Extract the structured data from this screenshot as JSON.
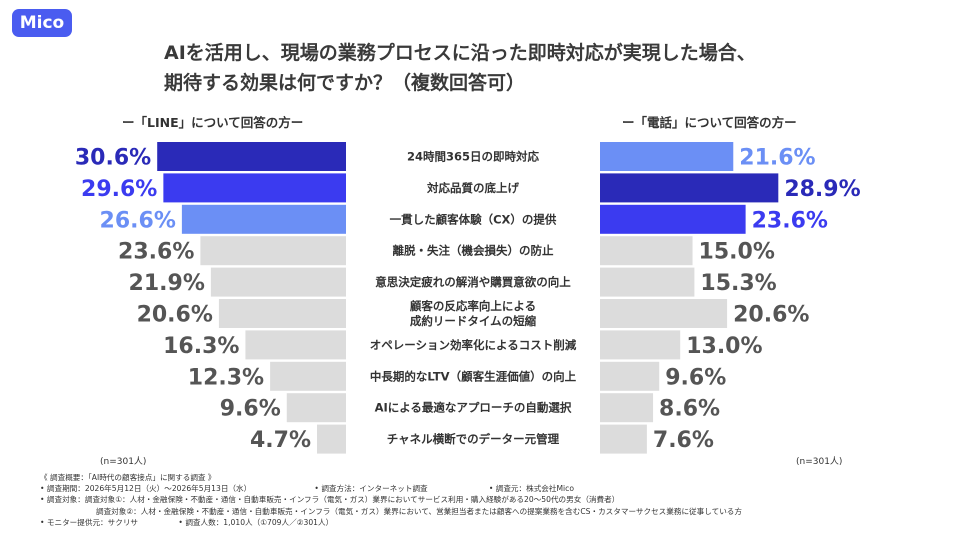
{
  "brand": "Mico",
  "title_line1": "AIを活用し、現場の業務プロセスに沿った即時対応が実現した場合、",
  "title_line2": "期待する効果は何ですか？（複数回答可）",
  "left_header": "ー「LINE」について回答の方ー",
  "right_header": "ー「電話」について回答の方ー",
  "left_n": "(n=301人)",
  "right_n": "(n=301人)",
  "colors": {
    "rank1": "#2a2ab8",
    "rank2": "#3b3bf0",
    "rank3": "#6b8ff5",
    "other": "#dcdcdc",
    "brand": "#4a5cf0"
  },
  "chart_data": {
    "type": "bar",
    "categories": [
      "24時間365日の即時対応",
      "対応品質の底上げ",
      "一貫した顧客体験（CX）の提供",
      "離脱・失注（機会損失）の防止",
      "意思決定疲れの解消や購買意欲の向上",
      "顧客の反応率向上による\n成約リードタイムの短縮",
      "オペレーション効率化によるコスト削減",
      "中長期的なLTV（顧客生涯価値）の向上",
      "AIによる最適なアプローチの自動選択",
      "チャネル横断でのデーター元管理"
    ],
    "series": [
      {
        "name": "ー「LINE」について回答の方ー",
        "values": [
          30.6,
          29.6,
          26.6,
          23.6,
          21.9,
          20.6,
          16.3,
          12.3,
          9.6,
          4.7
        ],
        "labels": [
          "30.6%",
          "29.6%",
          "26.6%",
          "23.6%",
          "21.9%",
          "20.6%",
          "16.3%",
          "12.3%",
          "9.6%",
          "4.7%"
        ]
      },
      {
        "name": "ー「電話」について回答の方ー",
        "values": [
          21.6,
          28.9,
          23.6,
          15.0,
          15.3,
          20.6,
          13.0,
          9.6,
          8.6,
          7.6
        ],
        "labels": [
          "21.6%",
          "28.9%",
          "23.6%",
          "15.0%",
          "15.3%",
          "20.6%",
          "13.0%",
          "9.6%",
          "8.6%",
          "7.6%"
        ]
      }
    ]
  },
  "footer": {
    "line1": "《 調査概要：「AI時代の顧客接点」に関する調査 》",
    "period": "• 調査期間：2026年5月12日（火）〜2026年5月13日（水）",
    "method": "• 調査方法：インターネット調査",
    "source": "• 調査元：株式会社Mico",
    "target1": "• 調査対象：調査対象①：人材・金融保険・不動産・通信・自動車販売・インフラ（電気・ガス）業界においてサービス利用・購入経験がある20〜50代の男女（消費者）",
    "target2": "調査対象②：人材・金融保険・不動産・通信・自動車販売・インフラ（電気・ガス）業界において、営業担当者または顧客への提案業務を含むCS・カスタマーサクセス業務に従事している方",
    "monitor": "• モニター提供元：サクリサ",
    "count": "• 調査人数：1,010人（①709人／②301人）"
  }
}
